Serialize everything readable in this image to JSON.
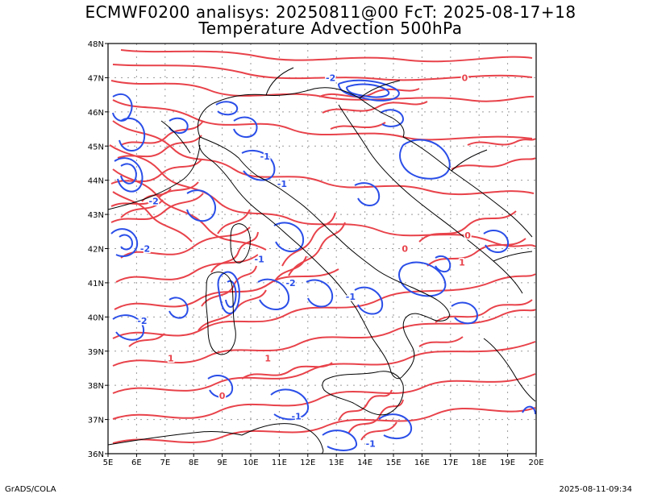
{
  "title_line1": "ECMWF0200 analisys: 20250811@00 FcT: 2025-08-17+18",
  "title_line2": "Temperature Advection 500hPa",
  "footer_left": "GrADS/COLA",
  "footer_right": "2025-08-11-09:34",
  "map": {
    "lon_labels": [
      "5E",
      "6E",
      "7E",
      "8E",
      "9E",
      "10E",
      "11E",
      "12E",
      "13E",
      "14E",
      "15E",
      "16E",
      "17E",
      "18E",
      "19E",
      "20E"
    ],
    "lat_labels": [
      "48N",
      "47N",
      "46N",
      "45N",
      "44N",
      "43N",
      "42N",
      "41N",
      "40N",
      "39N",
      "38N",
      "37N",
      "36N"
    ],
    "positive_color": "#e8424a",
    "negative_color": "#2a4ee8",
    "coast_color": "#000000",
    "contour_labels": [
      {
        "text": "-2",
        "lon": 12.8,
        "lat": 46.9,
        "sign": "neg"
      },
      {
        "text": "0",
        "lon": 17.5,
        "lat": 46.9,
        "sign": "pos"
      },
      {
        "text": "-1",
        "lon": 10.5,
        "lat": 44.6,
        "sign": "neg"
      },
      {
        "text": "-1",
        "lon": 11.1,
        "lat": 43.8,
        "sign": "neg"
      },
      {
        "text": "-2",
        "lon": 6.6,
        "lat": 43.3,
        "sign": "neg"
      },
      {
        "text": "-2",
        "lon": 6.3,
        "lat": 41.9,
        "sign": "neg"
      },
      {
        "text": "-1",
        "lon": 10.3,
        "lat": 41.6,
        "sign": "neg"
      },
      {
        "text": "-2",
        "lon": 11.4,
        "lat": 40.9,
        "sign": "neg"
      },
      {
        "text": "-2",
        "lon": 6.2,
        "lat": 39.8,
        "sign": "neg"
      },
      {
        "text": "-1",
        "lon": 13.5,
        "lat": 40.5,
        "sign": "neg"
      },
      {
        "text": "1",
        "lon": 7.2,
        "lat": 38.7,
        "sign": "pos"
      },
      {
        "text": "1",
        "lon": 10.6,
        "lat": 38.7,
        "sign": "pos"
      },
      {
        "text": "0",
        "lon": 9.0,
        "lat": 37.6,
        "sign": "pos"
      },
      {
        "text": "-1",
        "lon": 11.6,
        "lat": 37.0,
        "sign": "neg"
      },
      {
        "text": "-1",
        "lon": 14.2,
        "lat": 36.2,
        "sign": "neg"
      },
      {
        "text": "1",
        "lon": 17.4,
        "lat": 41.5,
        "sign": "pos"
      },
      {
        "text": "0",
        "lon": 15.4,
        "lat": 41.9,
        "sign": "pos"
      },
      {
        "text": "0",
        "lon": 17.6,
        "lat": 42.3,
        "sign": "pos"
      }
    ]
  }
}
